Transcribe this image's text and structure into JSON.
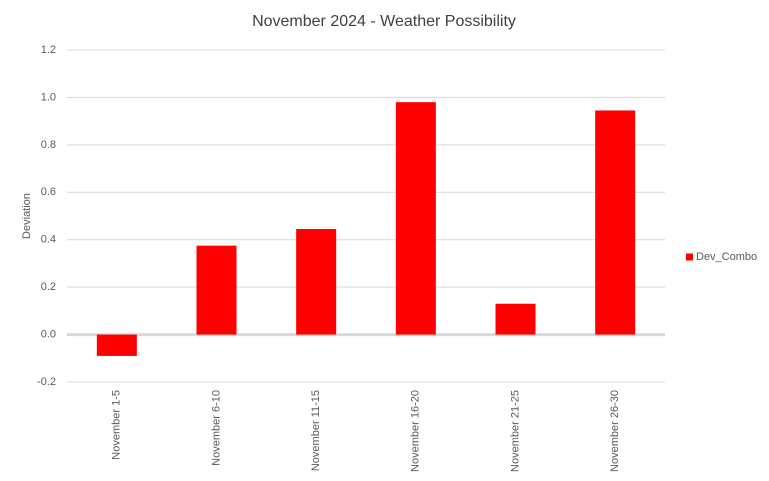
{
  "chart_data": {
    "type": "bar",
    "title": "November 2024 - Weather Possibility",
    "y_label": "Deviation",
    "categories": [
      "November 1-5",
      "November 6-10",
      "November 11-15",
      "November 16-20",
      "November 21-25",
      "November 26-30"
    ],
    "series": [
      {
        "name": "Dev_Combo",
        "color": "#ff0000",
        "values": [
          -0.09,
          0.375,
          0.445,
          0.98,
          0.13,
          0.945
        ]
      }
    ],
    "ylim": [
      -0.2,
      1.2
    ],
    "yticks": [
      -0.2,
      {
        "value": 0,
        "label": "0.0"
      },
      0.2,
      0.4,
      0.6,
      0.8,
      {
        "value": 1,
        "label": "1.0"
      },
      1.2
    ],
    "grid": true,
    "legend": "right"
  }
}
